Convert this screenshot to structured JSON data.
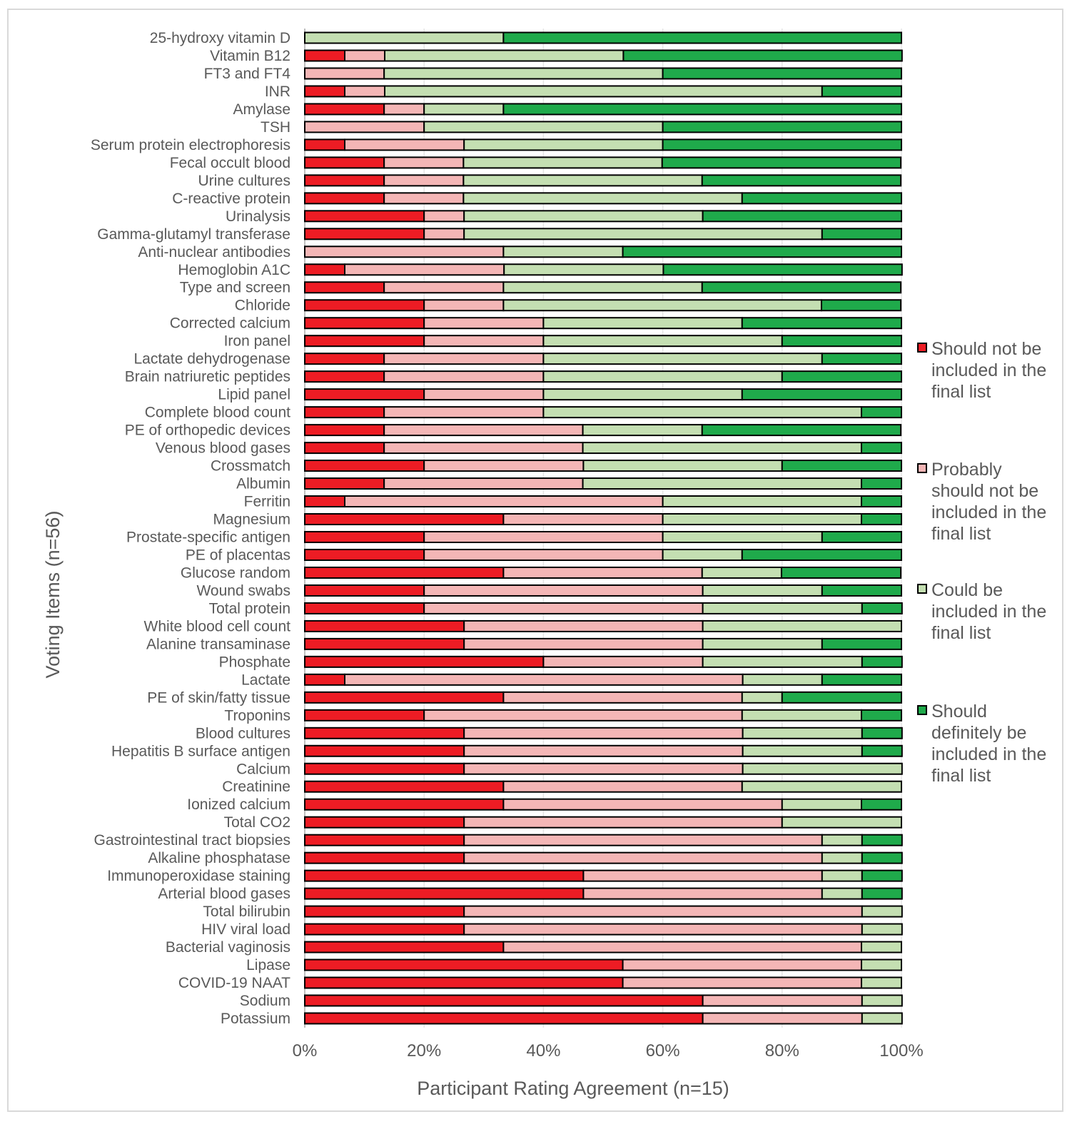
{
  "chart_data": {
    "type": "bar",
    "orientation": "horizontal",
    "stacked": "100%",
    "xlabel": "Participant Rating Agreement  (n=15)",
    "ylabel": "Voting Items (n=56)",
    "xlim": [
      0,
      100
    ],
    "x_ticks": [
      "0%",
      "20%",
      "40%",
      "60%",
      "80%",
      "100%"
    ],
    "grid": true,
    "legend_position": "right",
    "categories": [
      "25-hydroxy vitamin D",
      "Vitamin B12",
      "FT3 and FT4",
      "INR",
      "Amylase",
      "TSH",
      "Serum protein electrophoresis",
      "Fecal occult blood",
      "Urine cultures",
      "C-reactive protein",
      "Urinalysis",
      "Gamma-glutamyl transferase",
      "Anti-nuclear antibodies",
      "Hemoglobin A1C",
      "Type and screen",
      "Chloride",
      "Corrected calcium",
      "Iron panel",
      "Lactate dehydrogenase",
      "Brain natriuretic peptides",
      "Lipid panel",
      "Complete blood count",
      "PE of orthopedic devices",
      "Venous blood gases",
      "Crossmatch",
      "Albumin",
      "Ferritin",
      "Magnesium",
      "Prostate-specific antigen",
      "PE of placentas",
      "Glucose random",
      "Wound swabs",
      "Total protein",
      "White blood cell count",
      "Alanine transaminase",
      "Phosphate",
      "Lactate",
      "PE of skin/fatty tissue",
      "Troponins",
      "Blood cultures",
      "Hepatitis B surface antigen",
      "Calcium",
      "Creatinine",
      "Ionized calcium",
      "Total CO2",
      "Gastrointestinal tract biopsies",
      "Alkaline phosphatase",
      "Immunoperoxidase staining",
      "Arterial blood gases",
      "Total bilirubin",
      "HIV viral load",
      "Bacterial vaginosis",
      "Lipase",
      "COVID-19 NAAT",
      "Sodium",
      "Potassium"
    ],
    "series": [
      {
        "name": "Should not be included in the final list",
        "color": "#ed1c24",
        "values": [
          0,
          6.7,
          0,
          6.7,
          13.3,
          0,
          6.7,
          13.3,
          13.3,
          13.3,
          20,
          20,
          0,
          6.7,
          13.3,
          20,
          20,
          20,
          13.3,
          13.3,
          20,
          13.3,
          13.3,
          13.3,
          20,
          13.3,
          6.7,
          33.3,
          20,
          20,
          33.3,
          20,
          20,
          26.7,
          26.7,
          40,
          6.7,
          33.3,
          20,
          26.7,
          26.7,
          26.7,
          33.3,
          33.3,
          26.7,
          26.7,
          26.7,
          46.7,
          46.7,
          26.7,
          26.7,
          33.3,
          53.3,
          53.3,
          66.7,
          66.7
        ]
      },
      {
        "name": "Probably should not be included in the final list",
        "color": "#f4b6b6",
        "values": [
          0,
          6.7,
          13.3,
          6.7,
          6.7,
          20,
          20,
          13.3,
          13.3,
          13.3,
          6.7,
          6.7,
          33.3,
          26.7,
          20,
          13.3,
          20,
          20,
          26.7,
          26.7,
          20,
          26.7,
          33.3,
          33.3,
          26.7,
          33.3,
          53.3,
          26.7,
          40,
          40,
          33.3,
          46.7,
          46.7,
          40,
          40,
          26.7,
          66.7,
          40,
          53.3,
          46.7,
          46.7,
          46.7,
          40,
          46.7,
          53.3,
          60,
          60,
          40,
          40,
          66.7,
          66.7,
          60,
          40,
          40,
          26.7,
          26.7
        ]
      },
      {
        "name": "Could be included in the final list",
        "color": "#c4dfb2",
        "values": [
          33.3,
          40,
          46.7,
          73.3,
          13.3,
          40,
          33.3,
          33.3,
          40,
          46.7,
          40,
          60,
          20,
          26.7,
          33.3,
          53.3,
          33.3,
          40,
          46.7,
          40,
          33.3,
          53.3,
          20,
          46.7,
          33.3,
          46.7,
          33.3,
          33.3,
          26.7,
          13.3,
          13.3,
          20,
          26.7,
          33.3,
          20,
          26.7,
          13.3,
          6.7,
          20,
          20,
          20,
          26.7,
          26.7,
          13.3,
          20,
          6.7,
          6.7,
          6.7,
          6.7,
          6.7,
          6.7,
          6.7,
          6.7,
          6.7,
          6.7,
          6.7
        ]
      },
      {
        "name": "Should definitely be included in the final list",
        "color": "#1faa4b",
        "values": [
          66.7,
          46.7,
          40,
          13.3,
          66.7,
          40,
          40,
          40,
          33.3,
          26.7,
          33.3,
          13.3,
          46.7,
          40,
          33.3,
          13.3,
          26.7,
          20,
          13.3,
          20,
          26.7,
          6.7,
          33.3,
          6.7,
          20,
          6.7,
          6.7,
          6.7,
          13.3,
          26.7,
          20,
          13.3,
          6.7,
          0,
          13.3,
          6.7,
          13.3,
          20,
          6.7,
          6.7,
          6.7,
          0,
          0,
          6.7,
          0,
          6.7,
          6.7,
          6.7,
          6.7,
          0,
          0,
          0,
          0,
          0,
          0,
          0
        ]
      }
    ],
    "legend_lines": [
      [
        "Should not be",
        "included in the",
        "final list"
      ],
      [
        "Probably",
        "should not be",
        "included in the",
        "final list"
      ],
      [
        "Could be",
        "included in the",
        "final list"
      ],
      [
        "Should",
        "definitely be",
        "included in the",
        "final list"
      ]
    ]
  }
}
